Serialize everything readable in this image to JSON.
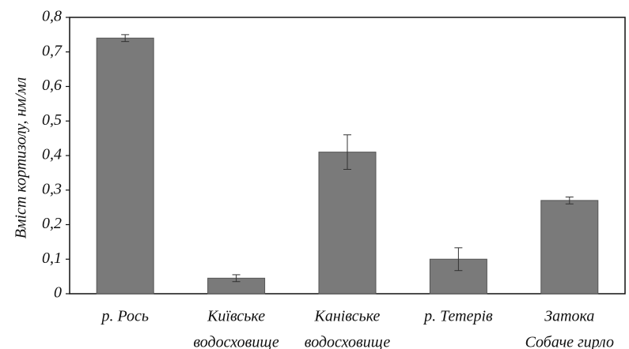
{
  "chart_data": {
    "type": "bar",
    "ylabel": "Вміст кортизолу, нм/мл",
    "categories": [
      [
        "р. Рось"
      ],
      [
        "Київське",
        "водосховище"
      ],
      [
        "Канівське",
        "водосховище"
      ],
      [
        "р. Тетерів"
      ],
      [
        "Затока",
        "Собаче гирло"
      ]
    ],
    "values": [
      0.74,
      0.045,
      0.41,
      0.1,
      0.27
    ],
    "errors": [
      0.01,
      0.01,
      0.05,
      0.033,
      0.01
    ],
    "color": "#7a7a7a",
    "ylim": [
      0,
      0.8
    ],
    "yticks": [
      0,
      {
        "value": 0.1,
        "label": "0,1"
      },
      {
        "value": 0.2,
        "label": "0,2"
      },
      {
        "value": 0.3,
        "label": "0,3"
      },
      {
        "value": 0.4,
        "label": "0,4"
      },
      {
        "value": 0.5,
        "label": "0,5"
      },
      {
        "value": 0.6,
        "label": "0,6"
      },
      {
        "value": 0.7,
        "label": "0,7"
      },
      {
        "value": 0.8,
        "label": "0,8"
      }
    ]
  }
}
